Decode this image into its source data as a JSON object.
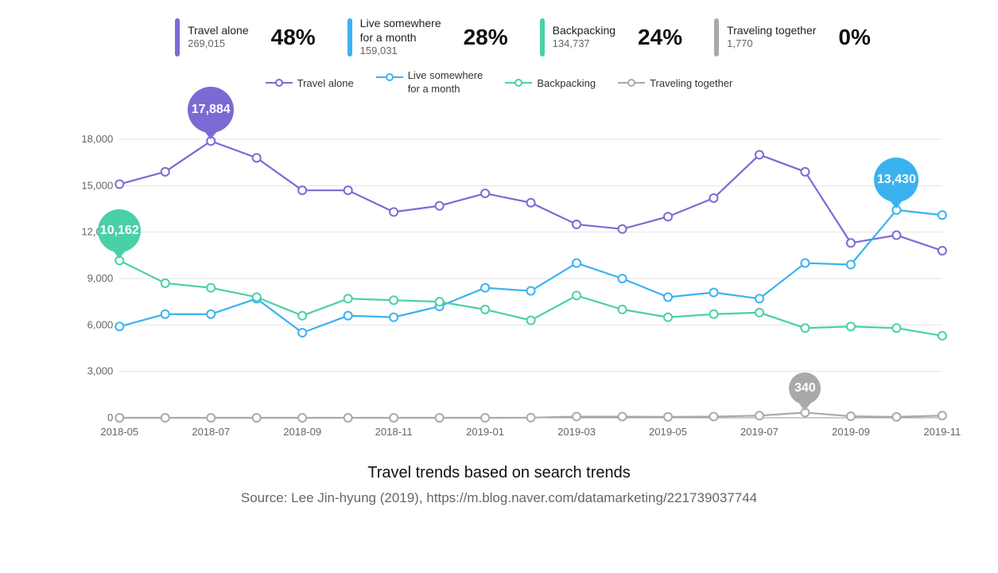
{
  "colors": {
    "travel_alone": "#7a6bd4",
    "live_month": "#3bb2f0",
    "backpacking": "#4ad0a9",
    "together": "#a9a9a9",
    "grid": "#e3e3e3",
    "axis": "#999999",
    "bg": "#ffffff",
    "text": "#333333",
    "muted": "#666666"
  },
  "summary": [
    {
      "key": "travel_alone",
      "label": "Travel alone",
      "count": "269,015",
      "pct": "48%",
      "bar_color": "#7a6bd4"
    },
    {
      "key": "live_month",
      "label": "Live somewhere\nfor a month",
      "count": "159,031",
      "pct": "28%",
      "bar_color": "#3bb2f0"
    },
    {
      "key": "backpacking",
      "label": "Backpacking",
      "count": "134,737",
      "pct": "24%",
      "bar_color": "#4ad0a9"
    },
    {
      "key": "together",
      "label": "Traveling together",
      "count": "1,770",
      "pct": "0%",
      "bar_color": "#a9a9a9"
    }
  ],
  "legend": [
    {
      "label": "Travel alone",
      "color": "#7a6bd4"
    },
    {
      "label": "Live somewhere\nfor a month",
      "color": "#3bb2f0"
    },
    {
      "label": "Backpacking",
      "color": "#4ad0a9"
    },
    {
      "label": "Traveling together",
      "color": "#a9a9a9"
    }
  ],
  "chart": {
    "type": "line",
    "ylim": [
      0,
      18000
    ],
    "ytick_step": 3000,
    "yticks": [
      "0",
      "3,000",
      "6,000",
      "9,000",
      "12,000",
      "15,000",
      "18,000"
    ],
    "x_categories": [
      "2018-05",
      "2018-06",
      "2018-07",
      "2018-08",
      "2018-09",
      "2018-10",
      "2018-11",
      "2018-12",
      "2019-01",
      "2019-02",
      "2019-03",
      "2019-04",
      "2019-05",
      "2019-06",
      "2019-07",
      "2019-08",
      "2019-09",
      "2019-10",
      "2019-11"
    ],
    "x_labels_shown": [
      "2018-05",
      "2018-07",
      "2018-09",
      "2018-11",
      "2019-01",
      "2019-03",
      "2019-05",
      "2019-07",
      "2019-09",
      "2019-11"
    ],
    "marker": "circle",
    "marker_size": 5,
    "line_width": 2.2,
    "grid_color": "#e3e3e3",
    "background_color": "#ffffff",
    "label_fontsize": 13,
    "series": {
      "travel_alone": {
        "label": "Travel alone",
        "color": "#7a6bd4",
        "values": [
          15100,
          15900,
          17884,
          16800,
          14700,
          14700,
          13300,
          13700,
          14500,
          13900,
          12500,
          12200,
          13000,
          14200,
          17000,
          15900,
          11300,
          11800,
          10800
        ]
      },
      "live_month": {
        "label": "Live somewhere for a month",
        "color": "#3bb2f0",
        "values": [
          5900,
          6700,
          6700,
          7700,
          5500,
          6600,
          6500,
          7200,
          8400,
          8200,
          10000,
          9000,
          7800,
          8100,
          7700,
          10000,
          9900,
          13430,
          13100
        ]
      },
      "backpacking": {
        "label": "Backpacking",
        "color": "#4ad0a9",
        "values": [
          10162,
          8700,
          8400,
          7800,
          6600,
          7700,
          7600,
          7500,
          7000,
          6300,
          7900,
          7000,
          6500,
          6700,
          6800,
          5800,
          5900,
          5800,
          5300
        ]
      },
      "together": {
        "label": "Traveling together",
        "color": "#a9a9a9",
        "values": [
          0,
          0,
          0,
          0,
          0,
          0,
          0,
          0,
          0,
          10,
          80,
          80,
          60,
          80,
          140,
          340,
          100,
          60,
          140
        ]
      }
    },
    "callouts": [
      {
        "key": "travel_alone",
        "x_index": 2,
        "value": 17884,
        "text": "17,884",
        "color": "#7a6bd4",
        "size": 58
      },
      {
        "key": "backpacking",
        "x_index": 0,
        "value": 10162,
        "text": "10,162",
        "color": "#4ad0a9",
        "size": 54
      },
      {
        "key": "live_month",
        "x_index": 17,
        "value": 13430,
        "text": "13,430",
        "color": "#3bb2f0",
        "size": 56
      },
      {
        "key": "together",
        "x_index": 15,
        "value": 340,
        "text": "340",
        "color": "#a9a9a9",
        "size": 40
      }
    ]
  },
  "caption": {
    "title": "Travel trends based on search trends",
    "source": "Source: Lee Jin-hyung (2019), https://m.blog.naver.com/datamarketing/221739037744"
  }
}
